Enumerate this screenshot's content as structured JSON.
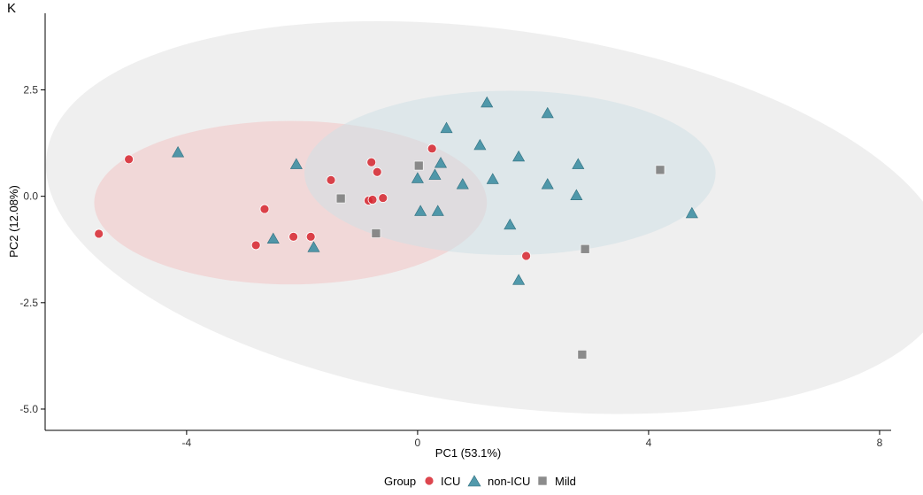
{
  "chart_data": {
    "type": "scatter",
    "panel_label": "K",
    "xlabel": "PC1 (53.1%)",
    "ylabel": "PC2 (12.08%)",
    "xlim": [
      -6.45,
      8.2
    ],
    "ylim": [
      -5.5,
      4.3
    ],
    "x_ticks": [
      -4,
      0,
      4,
      8
    ],
    "x_tick_labels": [
      "-4",
      "0",
      "4",
      "8"
    ],
    "y_ticks": [
      -5.0,
      -2.5,
      0.0,
      2.5
    ],
    "y_tick_labels": [
      "-5.0",
      "-2.5",
      "0.0",
      "2.5"
    ],
    "grid": false,
    "legend": {
      "title": "Group",
      "position": "bottom",
      "entries": [
        "ICU",
        "non-ICU",
        "Mild"
      ]
    },
    "series": [
      {
        "name": "ICU",
        "shape": "circle",
        "color": "#d7262f",
        "ellipse": {
          "cx": -2.2,
          "cy": -0.15,
          "rx": 3.4,
          "ry": 1.92,
          "color": "#f2c4c4"
        },
        "points": [
          [
            -5.0,
            0.87
          ],
          [
            -5.52,
            -0.88
          ],
          [
            -2.65,
            -0.3
          ],
          [
            -2.8,
            -1.15
          ],
          [
            -2.15,
            -0.95
          ],
          [
            -1.85,
            -0.95
          ],
          [
            -1.5,
            0.38
          ],
          [
            -0.8,
            0.8
          ],
          [
            -0.7,
            0.57
          ],
          [
            -0.85,
            -0.1
          ],
          [
            -0.78,
            -0.08
          ],
          [
            -0.6,
            -0.04
          ],
          [
            0.25,
            1.12
          ],
          [
            1.88,
            -1.4
          ]
        ]
      },
      {
        "name": "non-ICU",
        "shape": "triangle",
        "color": "#3f8fa3",
        "ellipse": {
          "cx": 1.6,
          "cy": 0.55,
          "rx": 3.56,
          "ry": 1.93,
          "color": "#cfe0e6"
        },
        "points": [
          [
            -4.15,
            1.03
          ],
          [
            -2.1,
            0.75
          ],
          [
            -2.5,
            -1.0
          ],
          [
            -1.8,
            -1.2
          ],
          [
            0.0,
            0.42
          ],
          [
            0.05,
            -0.35
          ],
          [
            0.3,
            0.5
          ],
          [
            0.35,
            -0.35
          ],
          [
            0.4,
            0.78
          ],
          [
            0.5,
            1.6
          ],
          [
            0.78,
            0.28
          ],
          [
            1.08,
            1.2
          ],
          [
            1.2,
            2.2
          ],
          [
            1.3,
            0.4
          ],
          [
            1.6,
            -0.67
          ],
          [
            1.75,
            0.93
          ],
          [
            1.75,
            -1.97
          ],
          [
            2.25,
            0.28
          ],
          [
            2.25,
            1.95
          ],
          [
            2.75,
            0.02
          ],
          [
            2.78,
            0.75
          ],
          [
            4.75,
            -0.4
          ]
        ]
      },
      {
        "name": "Mild",
        "shape": "square",
        "color": "#7f7f7f",
        "ellipse": {
          "cx": 1.4,
          "cy": -0.5,
          "rx": 7.9,
          "ry": 4.41,
          "color": "#eaeaea",
          "rotation": -8
        },
        "points": [
          [
            -1.33,
            -0.05
          ],
          [
            -0.72,
            -0.87
          ],
          [
            0.02,
            0.72
          ],
          [
            2.9,
            -1.24
          ],
          [
            2.85,
            -3.72
          ],
          [
            4.2,
            0.62
          ]
        ]
      }
    ]
  }
}
